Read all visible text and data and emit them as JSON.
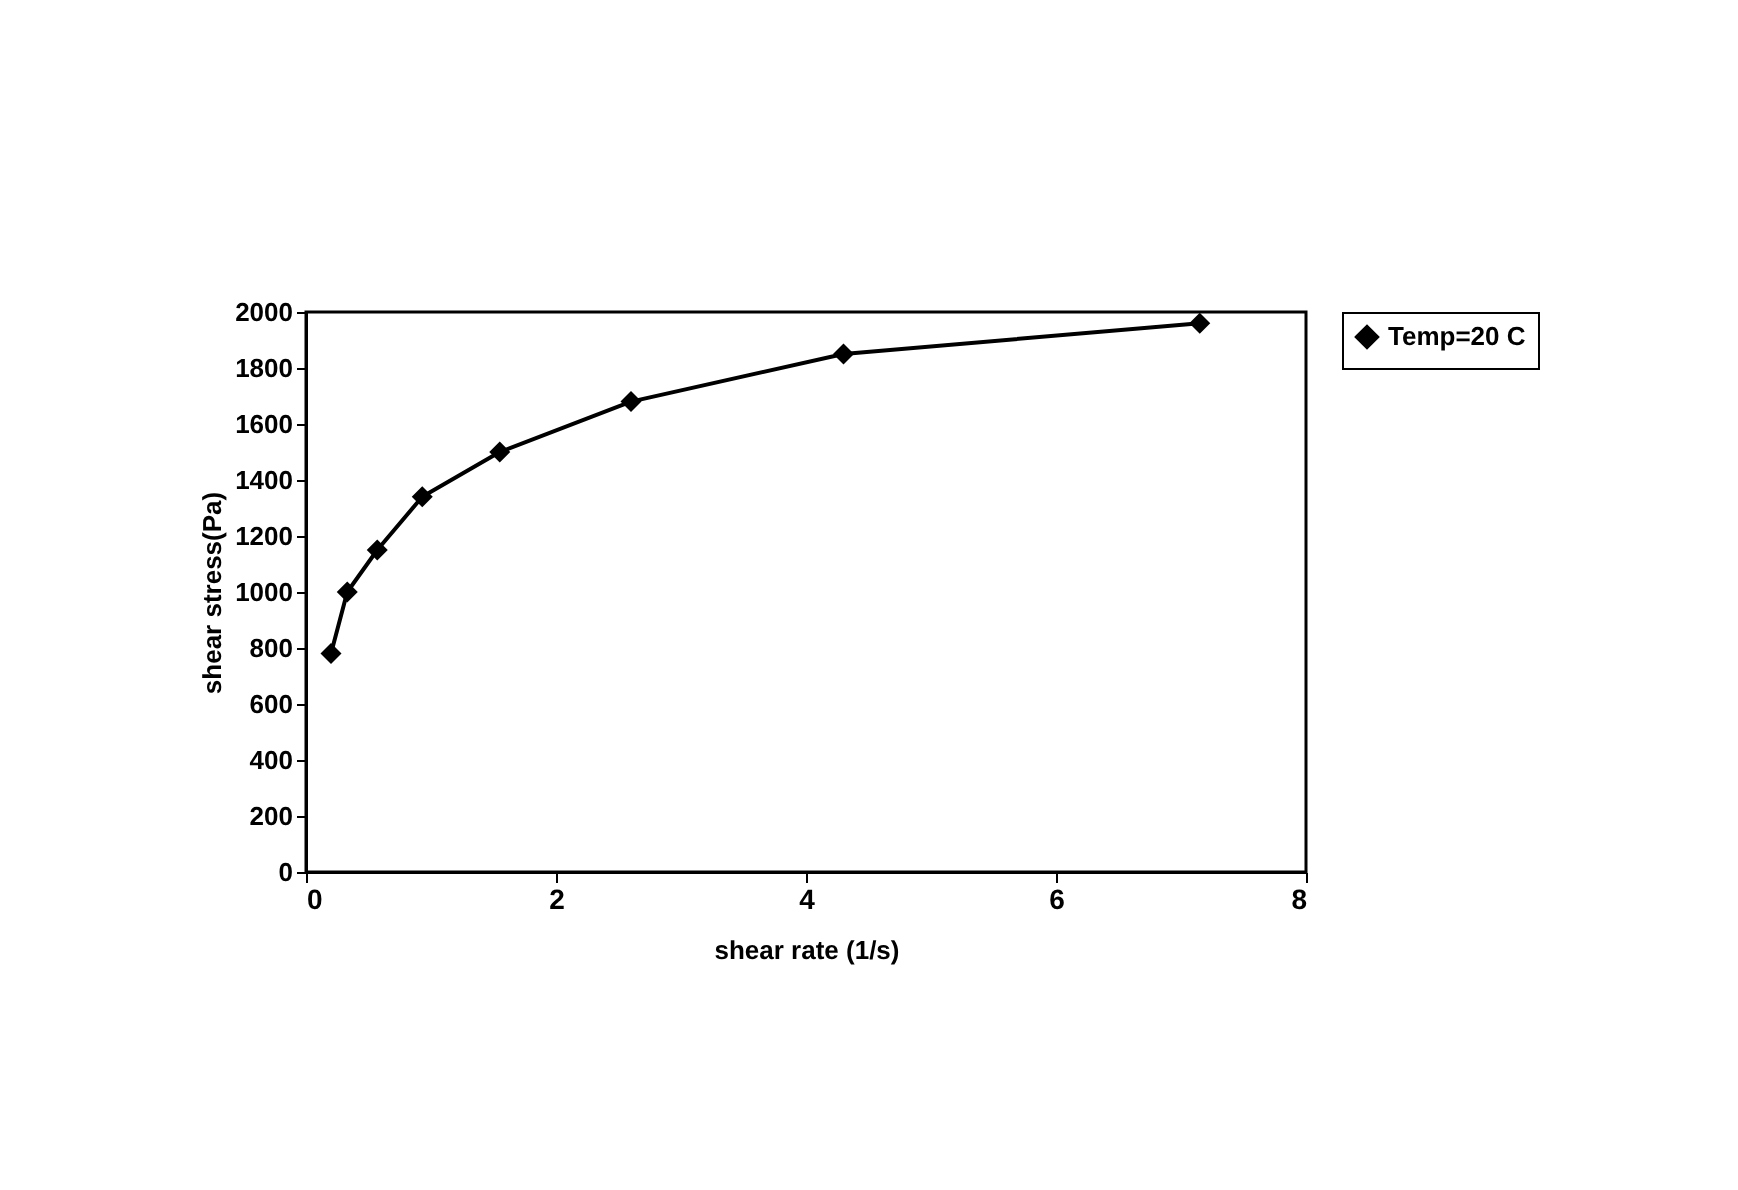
{
  "chart_data": {
    "type": "line",
    "xlabel": "shear rate (1/s)",
    "ylabel": "shear stress(Pa)",
    "x": [
      0.2,
      0.33,
      0.57,
      0.93,
      1.55,
      2.6,
      4.3,
      7.15
    ],
    "series": [
      {
        "name": "Temp=20 C",
        "color": "#000000",
        "values": [
          780,
          1000,
          1150,
          1340,
          1500,
          1680,
          1850,
          1960
        ]
      }
    ],
    "xlim": [
      0,
      8
    ],
    "xticks": [
      0,
      2,
      4,
      6,
      8
    ],
    "ylim": [
      0,
      2000
    ],
    "yticks": [
      0,
      200,
      400,
      600,
      800,
      1000,
      1200,
      1400,
      1600,
      1800,
      2000
    ],
    "grid": false,
    "legend": "right",
    "marker": "diamond",
    "line_style": "solid"
  }
}
